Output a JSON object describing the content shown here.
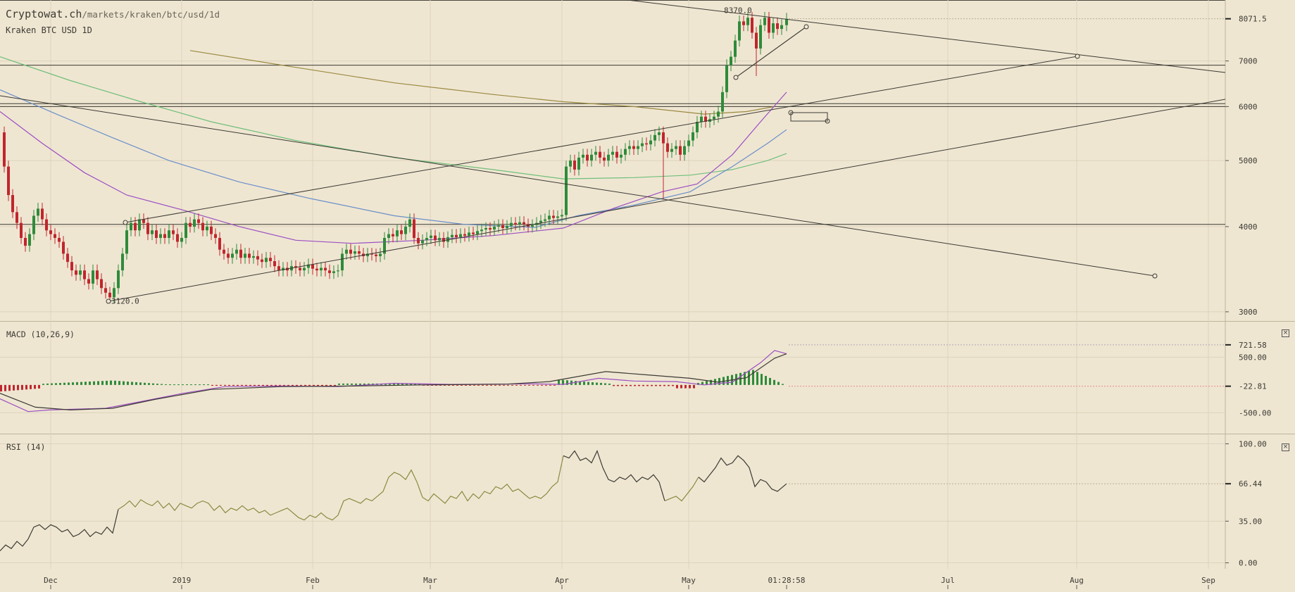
{
  "header": {
    "site": "Cryptowat.ch",
    "path": "/markets/kraken/btc/usd/1d",
    "subtitle": "Kraken BTC USD 1D"
  },
  "colors": {
    "background": "#efe6d2",
    "grid": "#ddd3bc",
    "up": "#2e8b3a",
    "down": "#c0262d",
    "ma_olive": "#9a8a40",
    "ma_green": "#6fbf7a",
    "ma_blue": "#6a8fc8",
    "ma_purple": "#9b4fc2",
    "line": "#3b3a33"
  },
  "chart_data": [
    {
      "type": "candlestick",
      "name": "price",
      "scale": "log",
      "ylim": [
        2950,
        8600
      ],
      "x_ticks": [
        "Dec",
        "2019",
        "Feb",
        "Mar",
        "Apr",
        "May",
        "Jul",
        "Aug",
        "Sep"
      ],
      "y_ticks": [
        3000,
        4000,
        5000,
        6000,
        7000
      ],
      "last_price_label": "8071.5",
      "last_price": 8071.5,
      "annotations": [
        {
          "text": "8370.0",
          "value": 8370
        },
        {
          "text": "3120.0",
          "value": 3120
        }
      ],
      "horizontal_levels": [
        6900,
        6060,
        6000,
        4030
      ],
      "time_label": "01:28:58",
      "series": [
        {
          "name": "ma-olive"
        },
        {
          "name": "ma-green"
        },
        {
          "name": "ma-blue"
        },
        {
          "name": "ma-purple"
        }
      ]
    },
    {
      "type": "line",
      "name": "MACD (10,26,9)",
      "ylim": [
        -800,
        1100
      ],
      "y_ticks": [
        "721.58",
        "500.00",
        "-22.81",
        "-500.00"
      ],
      "y_tick_values": [
        721.58,
        500,
        -22.81,
        -500
      ],
      "last_macd": 721.58,
      "last_histogram": -22.81
    },
    {
      "type": "line",
      "name": "RSI (14)",
      "ylim": [
        -5,
        105
      ],
      "y_ticks": [
        "100.00",
        "66.44",
        "35.00",
        "0.00"
      ],
      "y_tick_values": [
        100,
        66.44,
        35,
        0
      ],
      "last_value": 66.44
    }
  ],
  "panels": {
    "macd_label": "MACD (10,26,9)",
    "rsi_label": "RSI (14)",
    "close_icon": "×"
  }
}
